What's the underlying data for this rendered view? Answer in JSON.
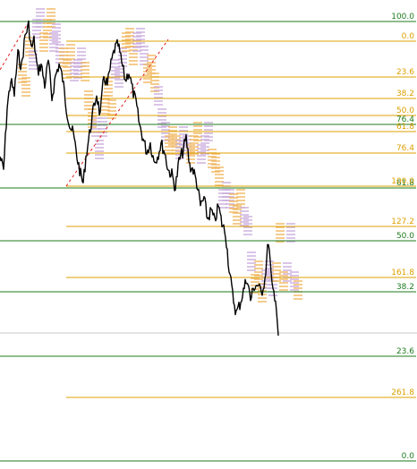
{
  "colors": {
    "green": "#1e7b1e",
    "orange": "#dca000",
    "price": "#000000",
    "cloud_orange": "#f0b45a",
    "cloud_purple": "#c8aadc",
    "trend": "#e02020",
    "current_line": "#c8c8c8"
  },
  "chart_data": {
    "type": "line",
    "title": "",
    "xlabel": "",
    "ylabel": "",
    "ylim": [
      0,
      520
    ],
    "price_series": [
      [
        0,
        175
      ],
      [
        4,
        190
      ],
      [
        8,
        120
      ],
      [
        12,
        90
      ],
      [
        16,
        105
      ],
      [
        20,
        60
      ],
      [
        24,
        75
      ],
      [
        28,
        40
      ],
      [
        32,
        28
      ],
      [
        35,
        55
      ],
      [
        38,
        45
      ],
      [
        42,
        80
      ],
      [
        46,
        72
      ],
      [
        50,
        95
      ],
      [
        54,
        68
      ],
      [
        58,
        110
      ],
      [
        62,
        85
      ],
      [
        66,
        72
      ],
      [
        70,
        88
      ],
      [
        74,
        120
      ],
      [
        78,
        140
      ],
      [
        82,
        150
      ],
      [
        86,
        175
      ],
      [
        90,
        195
      ],
      [
        93,
        205
      ],
      [
        96,
        175
      ],
      [
        100,
        150
      ],
      [
        104,
        125
      ],
      [
        108,
        105
      ],
      [
        112,
        130
      ],
      [
        116,
        85
      ],
      [
        120,
        95
      ],
      [
        124,
        72
      ],
      [
        128,
        55
      ],
      [
        132,
        50
      ],
      [
        136,
        70
      ],
      [
        140,
        90
      ],
      [
        144,
        80
      ],
      [
        148,
        100
      ],
      [
        152,
        115
      ],
      [
        156,
        140
      ],
      [
        160,
        155
      ],
      [
        164,
        170
      ],
      [
        168,
        160
      ],
      [
        172,
        180
      ],
      [
        176,
        175
      ],
      [
        180,
        160
      ],
      [
        184,
        170
      ],
      [
        188,
        190
      ],
      [
        192,
        195
      ],
      [
        196,
        210
      ],
      [
        200,
        180
      ],
      [
        204,
        170
      ],
      [
        208,
        155
      ],
      [
        212,
        185
      ],
      [
        216,
        190
      ],
      [
        220,
        205
      ],
      [
        224,
        230
      ],
      [
        228,
        222
      ],
      [
        232,
        245
      ],
      [
        236,
        235
      ],
      [
        240,
        248
      ],
      [
        244,
        230
      ],
      [
        248,
        250
      ],
      [
        252,
        260
      ],
      [
        256,
        300
      ],
      [
        260,
        330
      ],
      [
        264,
        350
      ],
      [
        268,
        340
      ],
      [
        272,
        325
      ],
      [
        276,
        310
      ],
      [
        280,
        335
      ],
      [
        284,
        320
      ],
      [
        288,
        318
      ],
      [
        292,
        328
      ],
      [
        296,
        312
      ],
      [
        300,
        268
      ],
      [
        304,
        322
      ],
      [
        308,
        332
      ],
      [
        311,
        375
      ]
    ],
    "fib_levels_green": [
      {
        "label": "100.0",
        "value": 24
      },
      {
        "label": "76.4",
        "value": 139
      },
      {
        "label": "61.8",
        "value": 210
      },
      {
        "label": "50.0",
        "value": 269
      },
      {
        "label": "38.2",
        "value": 326
      },
      {
        "label": "23.6",
        "value": 398
      },
      {
        "label": "0.0",
        "value": 515
      }
    ],
    "fib_levels_orange": [
      {
        "label": "0.0",
        "value": 46
      },
      {
        "label": "23.6",
        "value": 86
      },
      {
        "label": "38.2",
        "value": 110
      },
      {
        "label": "50.0",
        "value": 129
      },
      {
        "label": "61.8",
        "value": 147
      },
      {
        "label": "76.4",
        "value": 171
      },
      {
        "label": "100.0",
        "value": 208
      },
      {
        "label": "127.2",
        "value": 253
      },
      {
        "label": "161.8",
        "value": 310
      },
      {
        "label": "261.8",
        "value": 444
      }
    ],
    "current_price": 372,
    "grid": false,
    "legend": "none"
  }
}
